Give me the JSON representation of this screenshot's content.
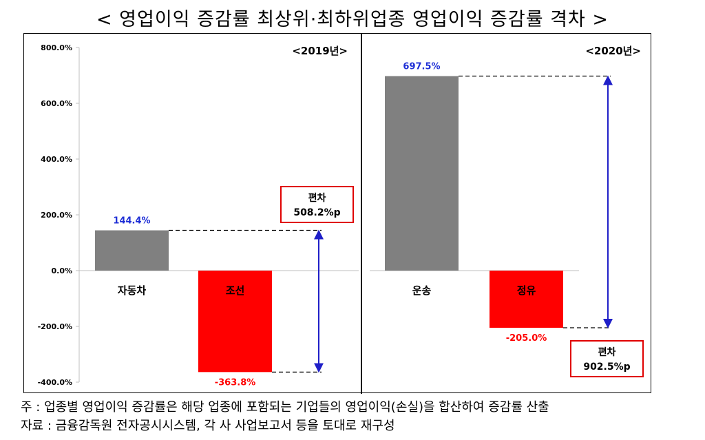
{
  "title": "< 영업이익 증감률 최상위·최하위업종 영업이익 증감률 격차 >",
  "footnote": "주 : 업종별 영업이익 증감률은 해당 업종에 포함되는 기업들의 영업이익(손실)을 합산하여 증감률 산출",
  "source": "자료 : 금융감독원 전자공시시스템, 각 사 사업보고서 등을 토대로 재구성",
  "colors": {
    "top": "#808080",
    "bottom": "#ff0000",
    "positive_label": "#1f2fd6",
    "negative_label": "#ff0000",
    "arrow": "#1f1fc8",
    "box_border": "#e00000"
  },
  "chart_data": {
    "type": "bar",
    "yaxis": {
      "min": -400,
      "max": 800,
      "ticks": [
        "800.0%",
        "600.0%",
        "400.0%",
        "200.0%",
        "0.0%",
        "-200.0%",
        "-400.0%"
      ],
      "tick_values": [
        800,
        600,
        400,
        200,
        0,
        -200,
        -400
      ]
    },
    "panels": [
      {
        "label": "<2019년>",
        "categories": [
          "자동차",
          "조선"
        ],
        "values": [
          144.4,
          -363.8
        ],
        "value_labels": [
          "144.4%",
          "-363.8%"
        ],
        "gap_title": "편차",
        "gap_value": "508.2%p"
      },
      {
        "label": "<2020년>",
        "categories": [
          "운송",
          "정유"
        ],
        "values": [
          697.5,
          -205.0
        ],
        "value_labels": [
          "697.5%",
          "-205.0%"
        ],
        "gap_title": "편차",
        "gap_value": "902.5%p"
      }
    ]
  }
}
